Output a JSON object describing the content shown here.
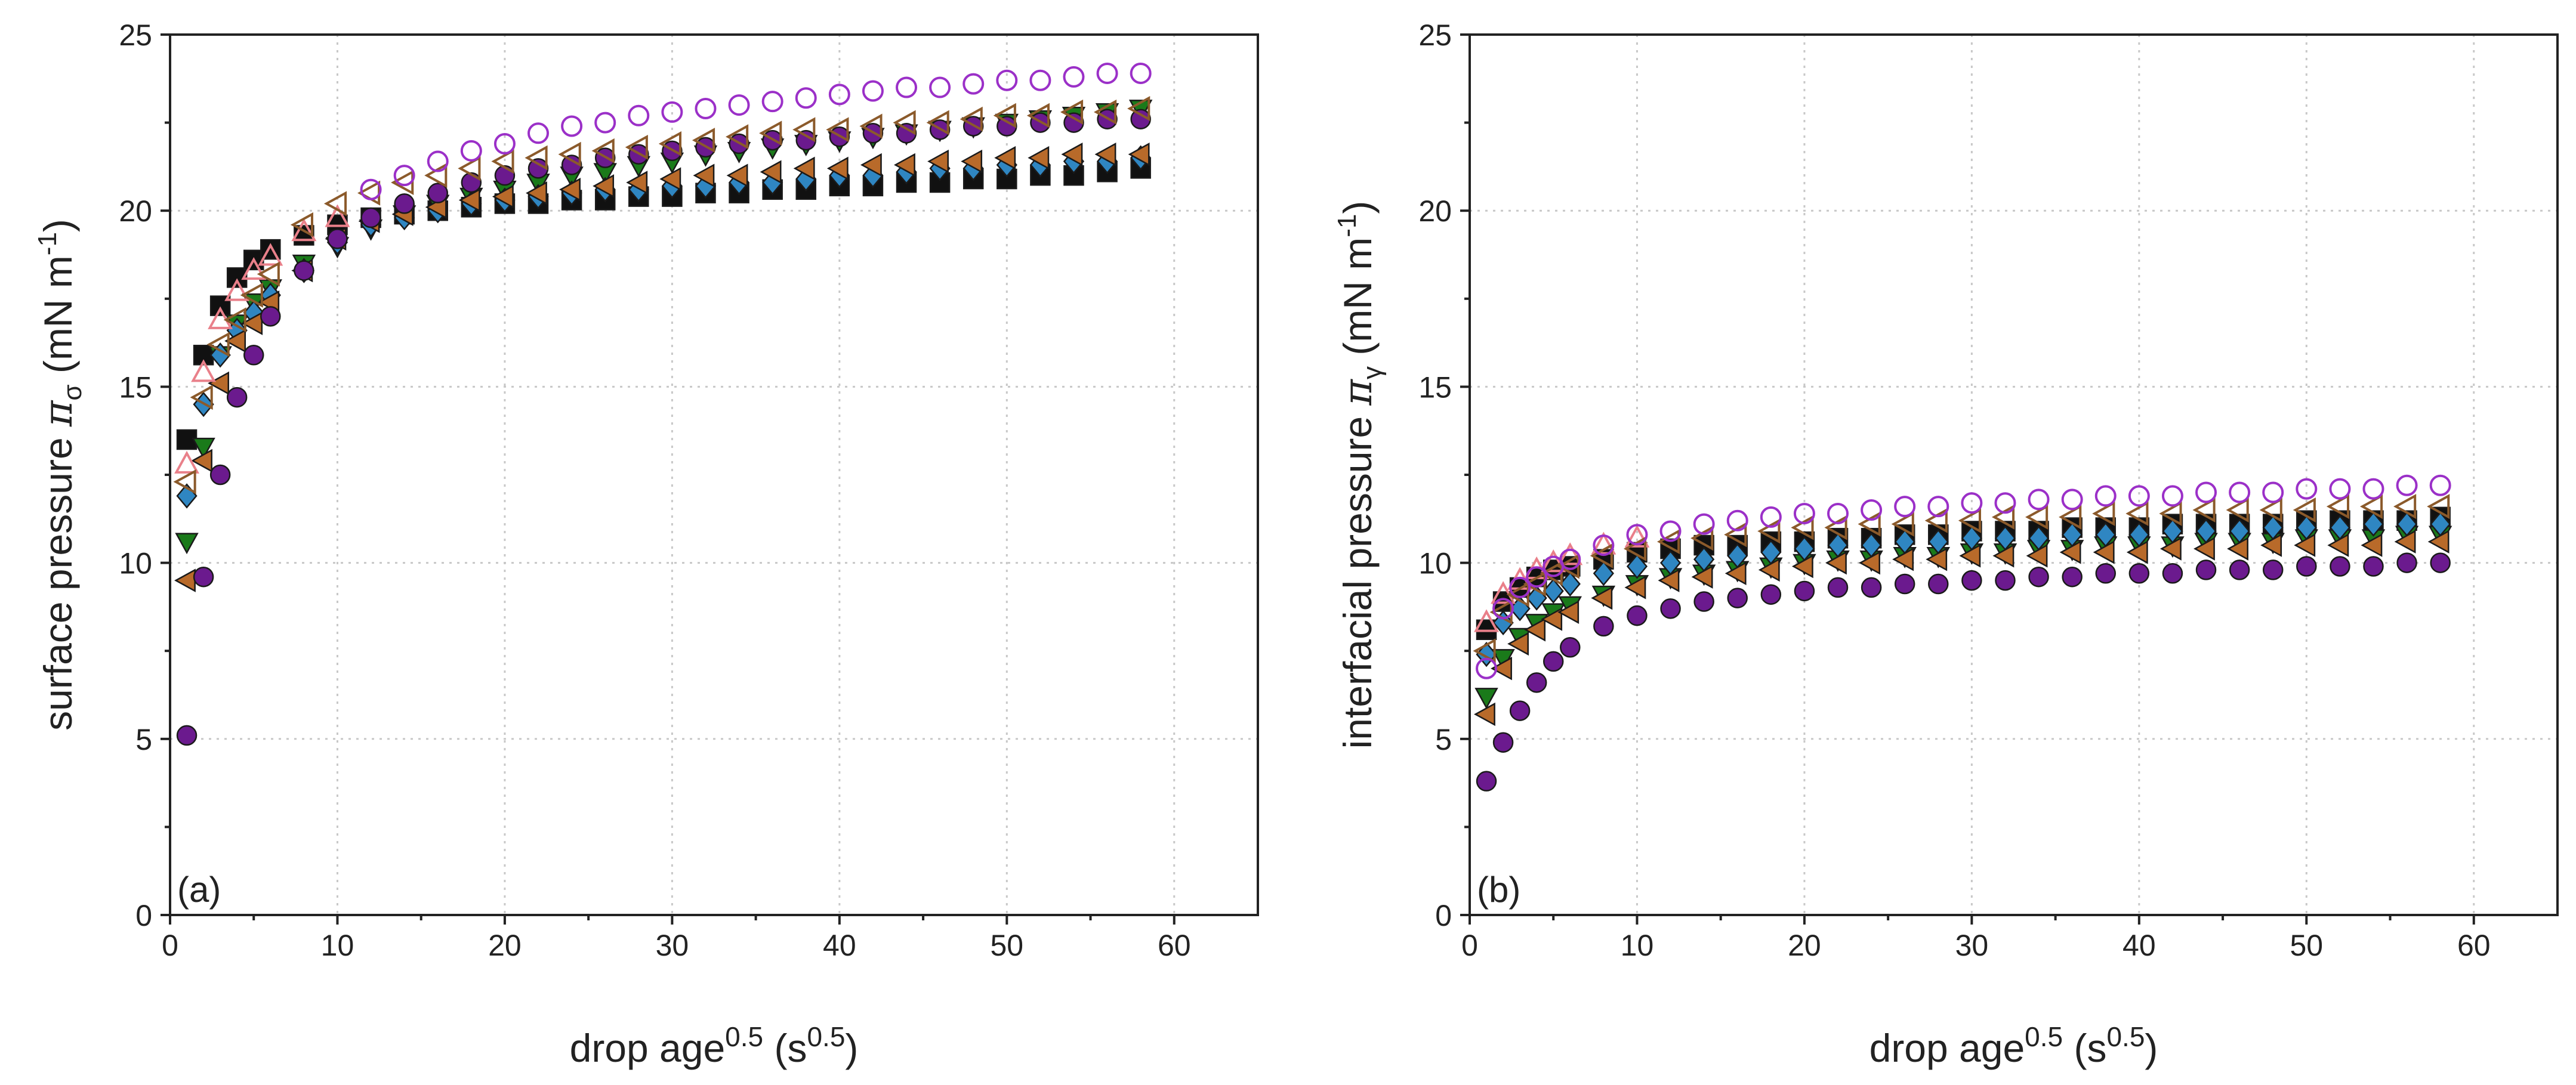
{
  "chart_data": [
    {
      "type": "scatter",
      "panel_label": "(a)",
      "xlabel": {
        "base": "drop age",
        "sup": "0.5",
        "unit_open": " (s",
        "unit_sup": "0.5",
        "unit_close": ")"
      },
      "ylabel": {
        "text": "surface pressure ",
        "symbol": "π",
        "symbol_sub": "σ",
        "unit_open": " (mN m",
        "unit_sup": "-1",
        "unit_close": ")"
      },
      "xlim": [
        0,
        65
      ],
      "ylim": [
        0,
        25
      ],
      "xticks": [
        0,
        10,
        20,
        30,
        40,
        50,
        60
      ],
      "yticks": [
        0,
        5,
        10,
        15,
        20,
        25
      ],
      "grid": true,
      "series": [
        {
          "marker": "square",
          "filled": true,
          "color": "#111111",
          "x": [
            1,
            2,
            3,
            4,
            5,
            6,
            8,
            10,
            12,
            14,
            16,
            18,
            20,
            22,
            24,
            26,
            28,
            30,
            32,
            34,
            36,
            38,
            40,
            42,
            44,
            46,
            48,
            50,
            52,
            54,
            56,
            58
          ],
          "y": [
            13.5,
            15.9,
            17.3,
            18.1,
            18.6,
            18.9,
            19.3,
            19.6,
            19.8,
            19.9,
            20.0,
            20.1,
            20.2,
            20.2,
            20.3,
            20.3,
            20.4,
            20.4,
            20.5,
            20.5,
            20.6,
            20.6,
            20.7,
            20.7,
            20.8,
            20.8,
            20.9,
            20.9,
            21.0,
            21.0,
            21.1,
            21.2
          ]
        },
        {
          "marker": "triangle-down",
          "filled": true,
          "color": "#1a7a1a",
          "x": [
            1,
            2,
            3,
            4,
            5,
            6,
            8,
            10,
            12,
            14,
            16,
            18,
            20,
            22,
            24,
            26,
            28,
            30,
            32,
            34,
            36,
            38,
            40,
            42,
            44,
            46,
            48,
            50,
            52,
            54,
            56,
            58
          ],
          "y": [
            10.6,
            13.3,
            15.9,
            16.8,
            17.4,
            17.8,
            18.5,
            19.0,
            19.5,
            19.9,
            20.2,
            20.4,
            20.6,
            20.8,
            21.0,
            21.1,
            21.3,
            21.4,
            21.6,
            21.7,
            21.8,
            21.9,
            22.0,
            22.1,
            22.2,
            22.3,
            22.4,
            22.5,
            22.6,
            22.7,
            22.8,
            22.9
          ]
        },
        {
          "marker": "diamond",
          "filled": true,
          "color": "#2f86c2",
          "x": [
            1,
            2,
            3,
            4,
            5,
            6,
            8,
            10,
            12,
            14,
            16,
            18,
            20,
            22,
            24,
            26,
            28,
            30,
            32,
            34,
            36,
            38,
            40,
            42,
            44,
            46,
            48,
            50,
            52,
            54,
            56,
            58
          ],
          "y": [
            11.9,
            14.5,
            15.9,
            16.6,
            17.1,
            17.6,
            18.3,
            19.1,
            19.6,
            19.8,
            20.0,
            20.2,
            20.3,
            20.4,
            20.5,
            20.6,
            20.6,
            20.7,
            20.7,
            20.8,
            20.8,
            20.9,
            21.0,
            21.0,
            21.1,
            21.2,
            21.2,
            21.3,
            21.3,
            21.4,
            21.4,
            21.5
          ]
        },
        {
          "marker": "triangle-left",
          "filled": true,
          "color": "#b86a2a",
          "x": [
            1,
            2,
            3,
            4,
            5,
            6,
            8,
            10,
            12,
            14,
            16,
            18,
            20,
            22,
            24,
            26,
            28,
            30,
            32,
            34,
            36,
            38,
            40,
            42,
            44,
            46,
            48,
            50,
            52,
            54,
            56,
            58
          ],
          "y": [
            9.5,
            12.9,
            15.1,
            16.3,
            16.8,
            17.4,
            18.3,
            19.2,
            19.7,
            19.9,
            20.1,
            20.3,
            20.4,
            20.5,
            20.6,
            20.7,
            20.8,
            20.9,
            21.0,
            21.0,
            21.1,
            21.2,
            21.2,
            21.3,
            21.3,
            21.4,
            21.4,
            21.5,
            21.5,
            21.6,
            21.6,
            21.6
          ]
        },
        {
          "marker": "circle",
          "filled": true,
          "color": "#6b1a8e",
          "x": [
            1,
            2,
            3,
            4,
            5,
            6,
            8,
            10,
            12,
            14,
            16,
            18,
            20,
            22,
            24,
            26,
            28,
            30,
            32,
            34,
            36,
            38,
            40,
            42,
            44,
            46,
            48,
            50,
            52,
            54,
            56,
            58
          ],
          "y": [
            5.1,
            9.6,
            12.5,
            14.7,
            15.9,
            17.0,
            18.3,
            19.2,
            19.8,
            20.2,
            20.5,
            20.8,
            21.0,
            21.2,
            21.3,
            21.5,
            21.6,
            21.7,
            21.8,
            21.9,
            22.0,
            22.0,
            22.1,
            22.2,
            22.2,
            22.3,
            22.4,
            22.4,
            22.5,
            22.5,
            22.6,
            22.6
          ]
        },
        {
          "marker": "triangle-up",
          "filled": false,
          "color": "#e9808a",
          "x": [
            1,
            2,
            3,
            4,
            5,
            6,
            8,
            10
          ],
          "y": [
            12.8,
            15.4,
            16.9,
            17.7,
            18.3,
            18.7,
            19.4,
            19.8
          ]
        },
        {
          "marker": "triangle-left",
          "filled": false,
          "color": "#8b5a2b",
          "x": [
            1,
            2,
            3,
            4,
            5,
            6,
            8,
            10,
            12,
            14,
            16,
            18,
            20,
            22,
            24,
            26,
            28,
            30,
            32,
            34,
            36,
            38,
            40,
            42,
            44,
            46,
            48,
            50,
            52,
            54,
            56,
            58
          ],
          "y": [
            12.3,
            14.7,
            16.2,
            16.9,
            17.6,
            18.2,
            19.6,
            20.2,
            20.5,
            20.8,
            21.0,
            21.2,
            21.4,
            21.5,
            21.6,
            21.7,
            21.8,
            21.9,
            22.0,
            22.1,
            22.2,
            22.3,
            22.3,
            22.4,
            22.5,
            22.5,
            22.6,
            22.7,
            22.7,
            22.8,
            22.8,
            22.9
          ]
        },
        {
          "marker": "circle",
          "filled": false,
          "color": "#9b30c8",
          "x": [
            12,
            14,
            16,
            18,
            20,
            22,
            24,
            26,
            28,
            30,
            32,
            34,
            36,
            38,
            40,
            42,
            44,
            46,
            48,
            50,
            52,
            54,
            56,
            58
          ],
          "y": [
            20.6,
            21.0,
            21.4,
            21.7,
            21.9,
            22.2,
            22.4,
            22.5,
            22.7,
            22.8,
            22.9,
            23.0,
            23.1,
            23.2,
            23.3,
            23.4,
            23.5,
            23.5,
            23.6,
            23.7,
            23.7,
            23.8,
            23.9,
            23.9
          ]
        }
      ]
    },
    {
      "type": "scatter",
      "panel_label": "(b)",
      "xlabel": {
        "base": "drop age",
        "sup": "0.5",
        "unit_open": " (s",
        "unit_sup": "0.5",
        "unit_close": ")"
      },
      "ylabel": {
        "text": "interfacial pressure ",
        "symbol": "π",
        "symbol_sub": "γ",
        "unit_open": " (mN m",
        "unit_sup": "-1",
        "unit_close": ")"
      },
      "xlim": [
        0,
        65
      ],
      "ylim": [
        0,
        25
      ],
      "xticks": [
        0,
        10,
        20,
        30,
        40,
        50,
        60
      ],
      "yticks": [
        0,
        5,
        10,
        15,
        20,
        25
      ],
      "grid": true,
      "series": [
        {
          "marker": "square",
          "filled": true,
          "color": "#111111",
          "x": [
            1,
            2,
            3,
            4,
            5,
            6,
            8,
            10,
            12,
            14,
            16,
            18,
            20,
            22,
            24,
            26,
            28,
            30,
            32,
            34,
            36,
            38,
            40,
            42,
            44,
            46,
            48,
            50,
            52,
            54,
            56,
            58
          ],
          "y": [
            8.1,
            8.9,
            9.3,
            9.6,
            9.8,
            9.9,
            10.1,
            10.3,
            10.4,
            10.5,
            10.5,
            10.6,
            10.6,
            10.7,
            10.7,
            10.8,
            10.8,
            10.9,
            10.9,
            10.9,
            11.0,
            11.0,
            11.0,
            11.1,
            11.1,
            11.1,
            11.1,
            11.2,
            11.2,
            11.2,
            11.2,
            11.3
          ]
        },
        {
          "marker": "triangle-down",
          "filled": true,
          "color": "#1a7a1a",
          "x": [
            1,
            2,
            3,
            4,
            5,
            6,
            8,
            10,
            12,
            14,
            16,
            18,
            20,
            22,
            24,
            26,
            28,
            30,
            32,
            34,
            36,
            38,
            40,
            42,
            44,
            46,
            48,
            50,
            52,
            54,
            56,
            58
          ],
          "y": [
            6.2,
            7.3,
            7.9,
            8.3,
            8.6,
            8.8,
            9.1,
            9.4,
            9.6,
            9.7,
            9.8,
            9.9,
            10.0,
            10.1,
            10.1,
            10.2,
            10.2,
            10.3,
            10.3,
            10.4,
            10.4,
            10.5,
            10.5,
            10.5,
            10.6,
            10.6,
            10.6,
            10.7,
            10.7,
            10.7,
            10.8,
            10.8
          ]
        },
        {
          "marker": "diamond",
          "filled": true,
          "color": "#2f86c2",
          "x": [
            1,
            2,
            3,
            4,
            5,
            6,
            8,
            10,
            12,
            14,
            16,
            18,
            20,
            22,
            24,
            26,
            28,
            30,
            32,
            34,
            36,
            38,
            40,
            42,
            44,
            46,
            48,
            50,
            52,
            54,
            56,
            58
          ],
          "y": [
            7.4,
            8.3,
            8.7,
            9.0,
            9.2,
            9.4,
            9.7,
            9.9,
            10.0,
            10.1,
            10.2,
            10.3,
            10.4,
            10.5,
            10.5,
            10.6,
            10.6,
            10.7,
            10.7,
            10.7,
            10.8,
            10.8,
            10.8,
            10.9,
            10.9,
            10.9,
            11.0,
            11.0,
            11.0,
            11.1,
            11.1,
            11.1
          ]
        },
        {
          "marker": "triangle-left",
          "filled": true,
          "color": "#b86a2a",
          "x": [
            1,
            2,
            3,
            4,
            5,
            6,
            8,
            10,
            12,
            14,
            16,
            18,
            20,
            22,
            24,
            26,
            28,
            30,
            32,
            34,
            36,
            38,
            40,
            42,
            44,
            46,
            48,
            50,
            52,
            54,
            56,
            58
          ],
          "y": [
            5.7,
            7.0,
            7.7,
            8.1,
            8.4,
            8.6,
            9.0,
            9.3,
            9.5,
            9.6,
            9.7,
            9.8,
            9.9,
            10.0,
            10.0,
            10.1,
            10.1,
            10.2,
            10.2,
            10.2,
            10.3,
            10.3,
            10.3,
            10.4,
            10.4,
            10.4,
            10.5,
            10.5,
            10.5,
            10.5,
            10.6,
            10.6
          ]
        },
        {
          "marker": "circle",
          "filled": true,
          "color": "#6b1a8e",
          "x": [
            1,
            2,
            3,
            4,
            5,
            6,
            8,
            10,
            12,
            14,
            16,
            18,
            20,
            22,
            24,
            26,
            28,
            30,
            32,
            34,
            36,
            38,
            40,
            42,
            44,
            46,
            48,
            50,
            52,
            54,
            56,
            58
          ],
          "y": [
            3.8,
            4.9,
            5.8,
            6.6,
            7.2,
            7.6,
            8.2,
            8.5,
            8.7,
            8.9,
            9.0,
            9.1,
            9.2,
            9.3,
            9.3,
            9.4,
            9.4,
            9.5,
            9.5,
            9.6,
            9.6,
            9.7,
            9.7,
            9.7,
            9.8,
            9.8,
            9.8,
            9.9,
            9.9,
            9.9,
            10.0,
            10.0
          ]
        },
        {
          "marker": "triangle-up",
          "filled": false,
          "color": "#e9808a",
          "x": [
            1,
            2,
            3,
            4,
            5,
            6,
            8,
            10
          ],
          "y": [
            8.3,
            9.1,
            9.5,
            9.8,
            10.0,
            10.2,
            10.5,
            10.7
          ]
        },
        {
          "marker": "triangle-left",
          "filled": false,
          "color": "#8b5a2b",
          "x": [
            1,
            2,
            3,
            4,
            5,
            6,
            8,
            10,
            12,
            14,
            16,
            18,
            20,
            22,
            24,
            26,
            28,
            30,
            32,
            34,
            36,
            38,
            40,
            42,
            44,
            46,
            48,
            50,
            52,
            54,
            56,
            58
          ],
          "y": [
            7.5,
            8.6,
            9.1,
            9.4,
            9.7,
            9.9,
            10.2,
            10.4,
            10.6,
            10.7,
            10.8,
            10.9,
            11.0,
            11.0,
            11.1,
            11.1,
            11.2,
            11.2,
            11.3,
            11.3,
            11.3,
            11.4,
            11.4,
            11.4,
            11.5,
            11.5,
            11.5,
            11.5,
            11.6,
            11.6,
            11.6,
            11.6
          ]
        },
        {
          "marker": "circle",
          "filled": false,
          "color": "#9b30c8",
          "x": [
            1,
            2,
            3,
            4,
            5,
            6,
            8,
            10,
            12,
            14,
            16,
            18,
            20,
            22,
            24,
            26,
            28,
            30,
            32,
            34,
            36,
            38,
            40,
            42,
            44,
            46,
            48,
            50,
            52,
            54,
            56,
            58
          ],
          "y": [
            7.0,
            8.7,
            9.3,
            9.6,
            9.9,
            10.1,
            10.5,
            10.8,
            10.9,
            11.1,
            11.2,
            11.3,
            11.4,
            11.4,
            11.5,
            11.6,
            11.6,
            11.7,
            11.7,
            11.8,
            11.8,
            11.9,
            11.9,
            11.9,
            12.0,
            12.0,
            12.0,
            12.1,
            12.1,
            12.1,
            12.2,
            12.2
          ]
        }
      ]
    }
  ]
}
